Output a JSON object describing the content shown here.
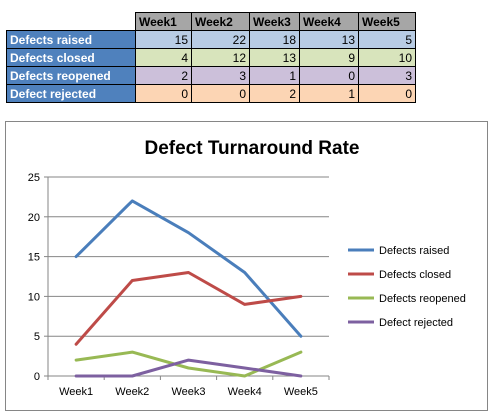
{
  "table": {
    "headers": [
      "Week1",
      "Week2",
      "Week3",
      "Week4",
      "Week5"
    ],
    "rows": [
      {
        "label": "Defects raised",
        "values": [
          "15",
          "22",
          "18",
          "13",
          "5"
        ]
      },
      {
        "label": "Defects closed",
        "values": [
          "4",
          "12",
          "13",
          "9",
          "10"
        ]
      },
      {
        "label": "Defects reopened",
        "values": [
          "2",
          "3",
          "1",
          "0",
          "3"
        ]
      },
      {
        "label": "Defect rejected",
        "values": [
          "0",
          "0",
          "2",
          "1",
          "0"
        ]
      }
    ]
  },
  "chart_data": {
    "type": "line",
    "title": "Defect Turnaround Rate",
    "categories": [
      "Week1",
      "Week2",
      "Week3",
      "Week4",
      "Week5"
    ],
    "ylim": [
      0,
      25
    ],
    "yticks": [
      "0",
      "5",
      "10",
      "15",
      "20",
      "25"
    ],
    "grid": true,
    "legend_position": "right",
    "series": [
      {
        "name": "Defects raised",
        "values": [
          15,
          22,
          18,
          13,
          5
        ],
        "color": "#4a7ebb"
      },
      {
        "name": "Defects closed",
        "values": [
          4,
          12,
          13,
          9,
          10
        ],
        "color": "#be4b48"
      },
      {
        "name": "Defects reopened",
        "values": [
          2,
          3,
          1,
          0,
          3
        ],
        "color": "#98b954"
      },
      {
        "name": "Defect rejected",
        "values": [
          0,
          0,
          2,
          1,
          0
        ],
        "color": "#7d60a0"
      }
    ]
  }
}
